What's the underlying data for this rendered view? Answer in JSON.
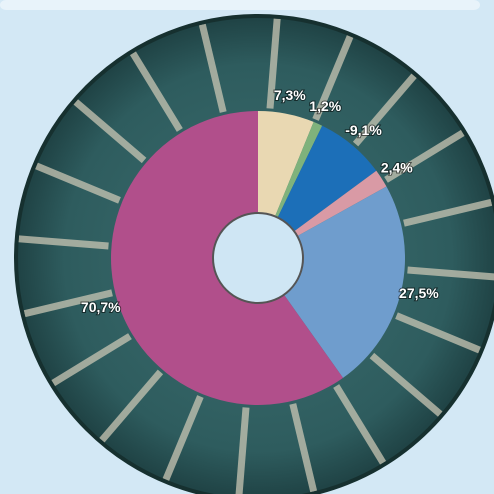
{
  "chart_data": {
    "type": "donut",
    "categories": [
      null,
      null,
      null,
      null,
      null,
      null
    ],
    "values": [
      7.3,
      1.2,
      -9.1,
      2.4,
      27.5,
      70.7
    ],
    "value_labels": [
      "7,3%",
      "1,2%",
      "-9,1%",
      "2,4%",
      "27,5%",
      "70,7%"
    ],
    "colors": [
      "#e9d8b2",
      "#7fb27c",
      "#1c6fb8",
      "#d99aa5",
      "#6f9dcd",
      "#b14f8b"
    ]
  }
}
